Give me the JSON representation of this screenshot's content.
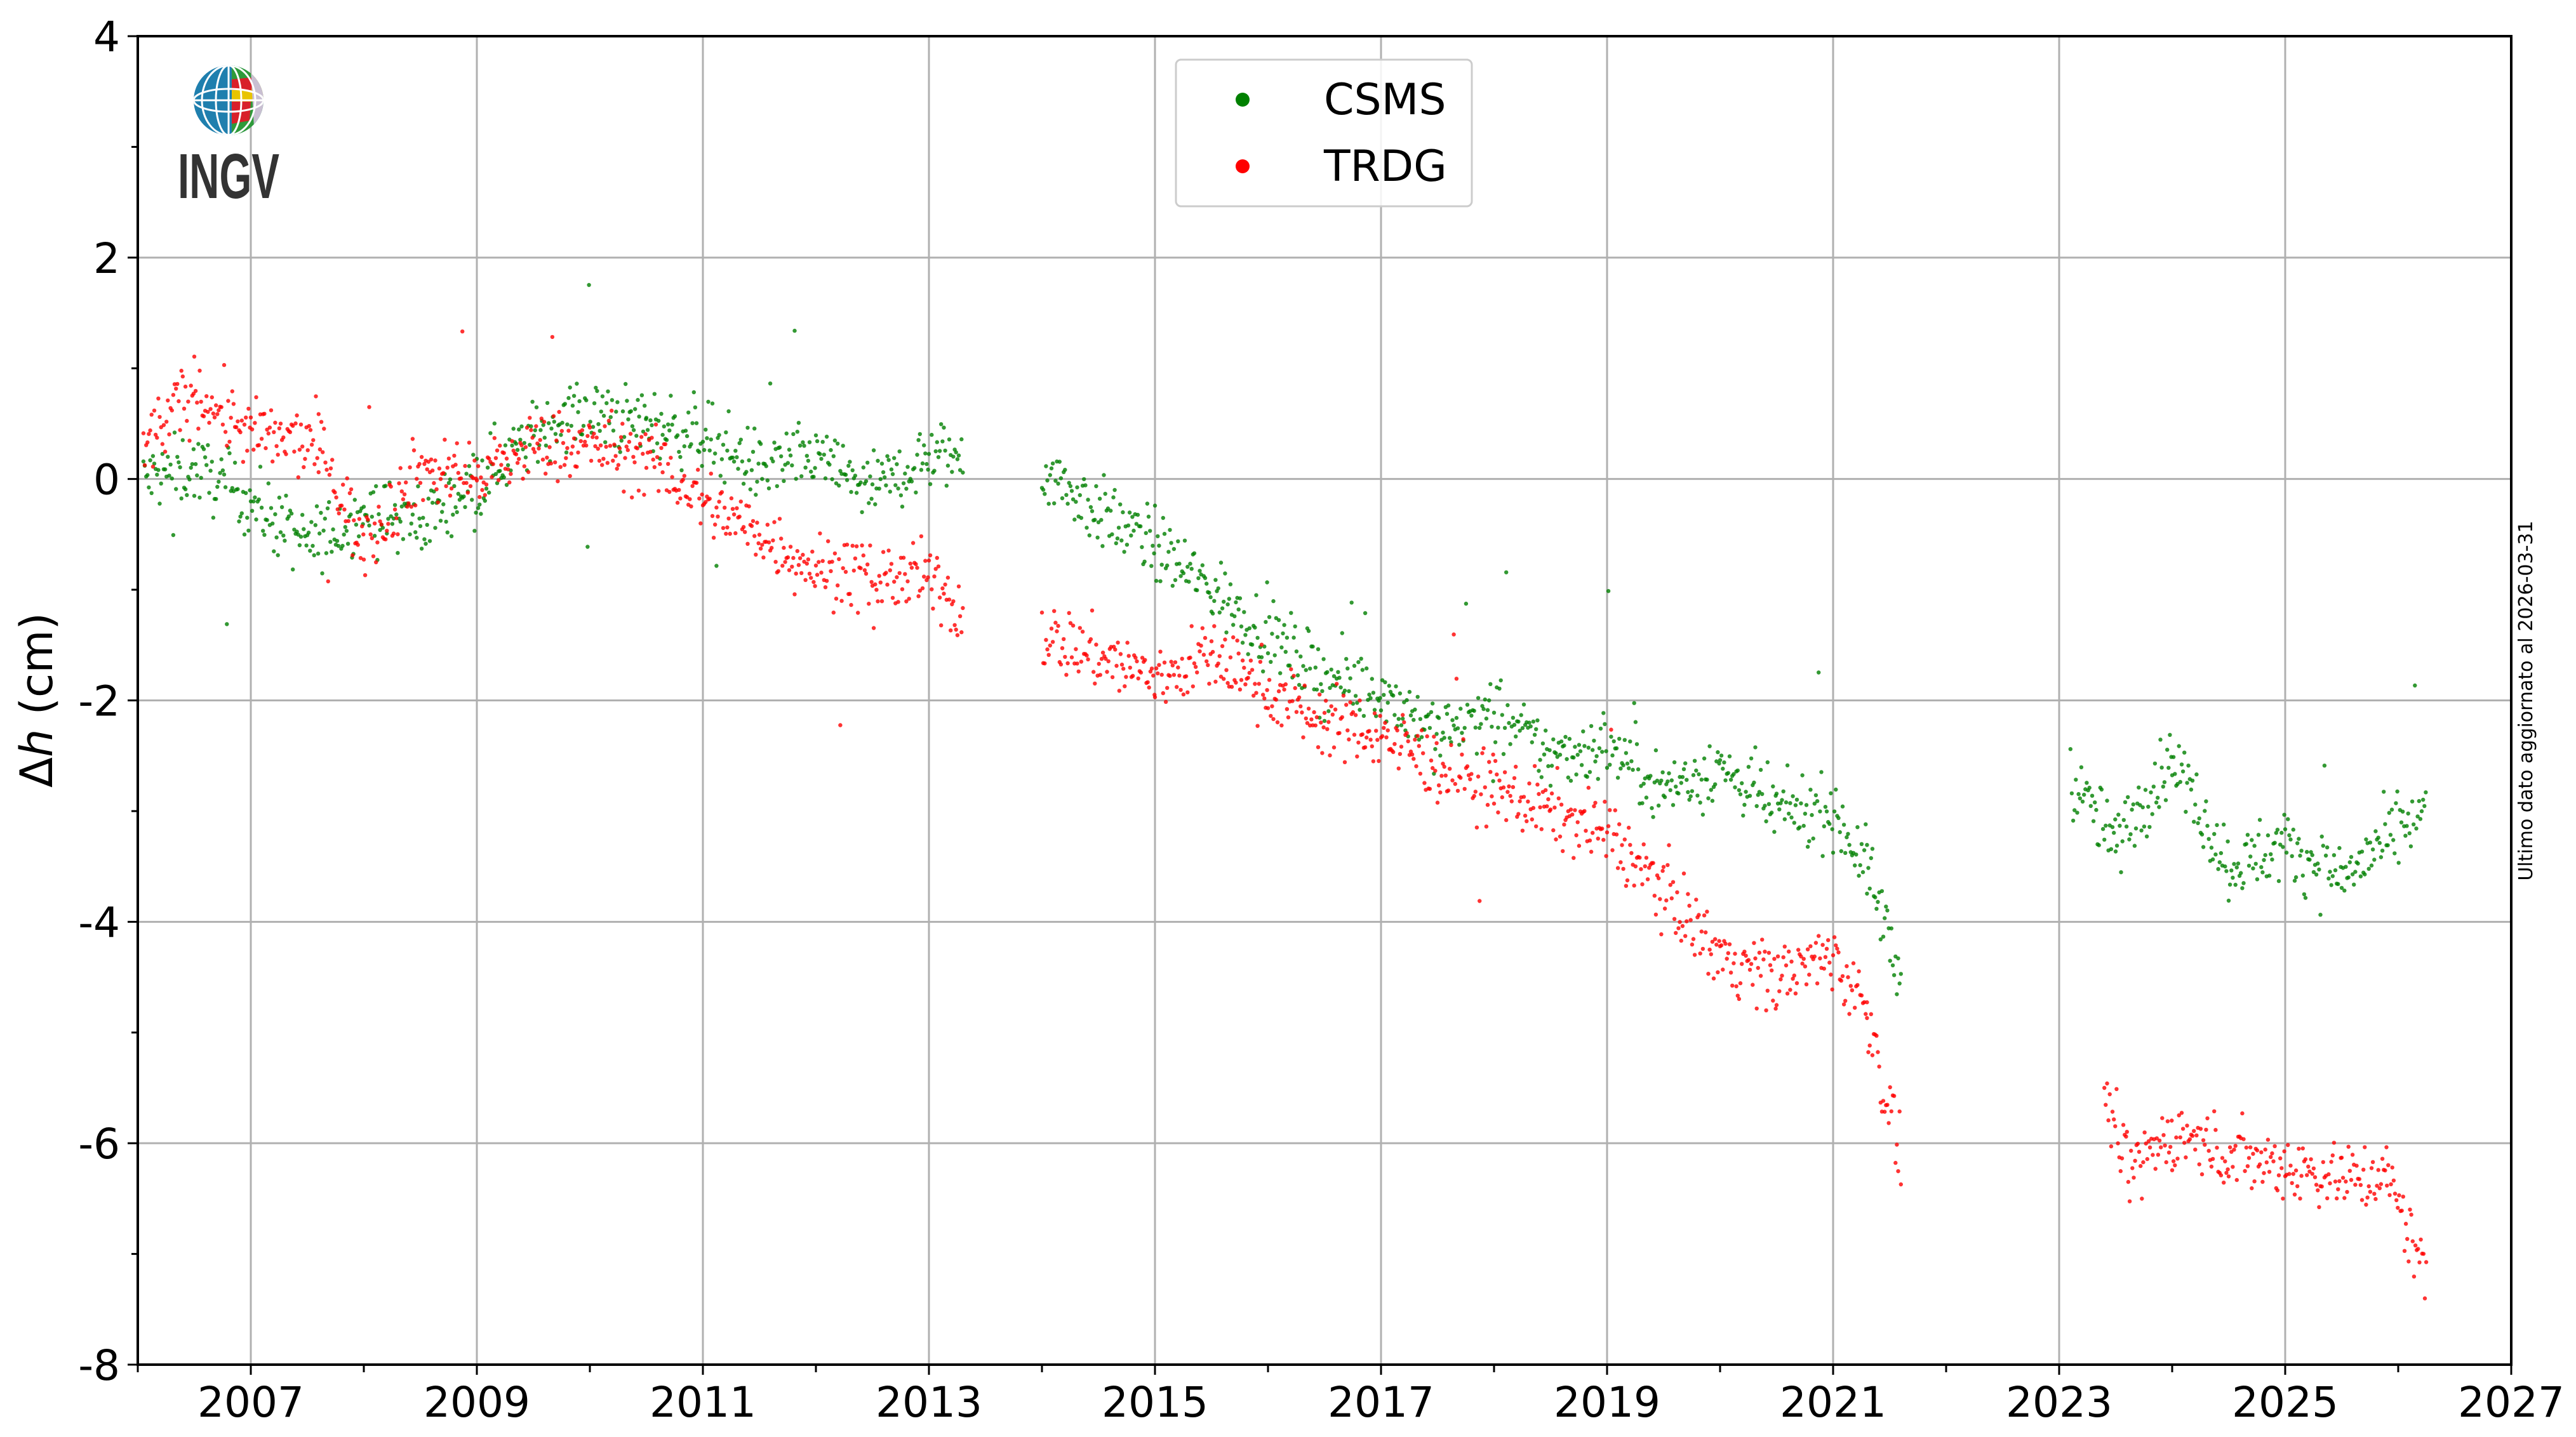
{
  "chart_data": {
    "type": "scatter",
    "title": "",
    "xlabel": "",
    "ylabel_symbol": "Δ",
    "ylabel_var": "h",
    "ylabel_unit": " (cm)",
    "xlim": [
      2006,
      2027
    ],
    "ylim": [
      -8,
      4
    ],
    "x_ticks": [
      2007,
      2009,
      2011,
      2013,
      2015,
      2017,
      2019,
      2021,
      2023,
      2025,
      2027
    ],
    "y_ticks": [
      4,
      2,
      0,
      -2,
      -4,
      -6,
      -8
    ],
    "y_tick_labels": [
      "4",
      "2",
      "0",
      "-2",
      "-4",
      "-6",
      "-8"
    ],
    "grid": true,
    "legend_position": "top-center",
    "series": [
      {
        "name": "CSMS",
        "color": "#008000",
        "trend_segments": [
          [
            [
              2006.05,
              0.0
            ],
            [
              2006.5,
              0.1
            ],
            [
              2007,
              -0.2
            ],
            [
              2007.5,
              -0.6
            ],
            [
              2008,
              -0.3
            ],
            [
              2008.5,
              -0.4
            ],
            [
              2009,
              0.0
            ],
            [
              2009.8,
              0.6
            ],
            [
              2010.5,
              0.5
            ],
            [
              2011,
              0.4
            ],
            [
              2011.5,
              0.1
            ],
            [
              2012,
              0.2
            ],
            [
              2012.5,
              -0.1
            ],
            [
              2013,
              0.2
            ],
            [
              2013.3,
              0.2
            ]
          ],
          [
            [
              2014,
              0.1
            ],
            [
              2014.5,
              -0.3
            ],
            [
              2015,
              -0.6
            ],
            [
              2015.5,
              -1.0
            ],
            [
              2016,
              -1.4
            ],
            [
              2016.5,
              -1.8
            ],
            [
              2017,
              -1.9
            ],
            [
              2017.5,
              -2.3
            ],
            [
              2018,
              -2.1
            ],
            [
              2018.5,
              -2.5
            ],
            [
              2019,
              -2.4
            ],
            [
              2019.5,
              -2.8
            ],
            [
              2020,
              -2.6
            ],
            [
              2020.5,
              -3.0
            ],
            [
              2021,
              -3.0
            ],
            [
              2021.3,
              -3.5
            ],
            [
              2021.6,
              -4.5
            ]
          ],
          [
            [
              2023.1,
              -2.7
            ],
            [
              2023.5,
              -3.3
            ],
            [
              2024,
              -2.5
            ],
            [
              2024.5,
              -3.5
            ],
            [
              2025,
              -3.3
            ],
            [
              2025.5,
              -3.6
            ],
            [
              2026.25,
              -3.0
            ]
          ]
        ]
      },
      {
        "name": "TRDG",
        "color": "#ff0000",
        "trend_segments": [
          [
            [
              2006.05,
              0.3
            ],
            [
              2006.5,
              0.8
            ],
            [
              2007,
              0.4
            ],
            [
              2007.6,
              0.3
            ],
            [
              2008,
              -0.6
            ],
            [
              2008.5,
              0.1
            ],
            [
              2009,
              0.0
            ],
            [
              2009.5,
              0.3
            ],
            [
              2010,
              0.3
            ],
            [
              2010.5,
              0.2
            ],
            [
              2011,
              -0.2
            ],
            [
              2011.5,
              -0.5
            ],
            [
              2012,
              -0.8
            ],
            [
              2012.5,
              -0.9
            ],
            [
              2013,
              -0.9
            ],
            [
              2013.3,
              -1.2
            ]
          ],
          [
            [
              2014,
              -1.4
            ],
            [
              2015,
              -1.8
            ],
            [
              2015.5,
              -1.6
            ],
            [
              2016,
              -1.9
            ],
            [
              2016.5,
              -2.2
            ],
            [
              2017,
              -2.3
            ],
            [
              2017.5,
              -2.6
            ],
            [
              2018,
              -2.8
            ],
            [
              2018.5,
              -3.0
            ],
            [
              2019,
              -3.2
            ],
            [
              2019.5,
              -3.7
            ],
            [
              2020,
              -4.3
            ],
            [
              2020.5,
              -4.5
            ],
            [
              2021,
              -4.3
            ],
            [
              2021.3,
              -4.8
            ],
            [
              2021.6,
              -6.2
            ]
          ],
          [
            [
              2023.4,
              -5.5
            ],
            [
              2023.6,
              -6.3
            ],
            [
              2024,
              -5.9
            ],
            [
              2024.5,
              -6.1
            ],
            [
              2025,
              -6.2
            ],
            [
              2025.5,
              -6.3
            ],
            [
              2025.9,
              -6.3
            ],
            [
              2026.25,
              -7.2
            ]
          ]
        ]
      }
    ],
    "annotation": "Ultimo dato aggiornato al 2026-03-31",
    "logo_text": "INGV"
  }
}
